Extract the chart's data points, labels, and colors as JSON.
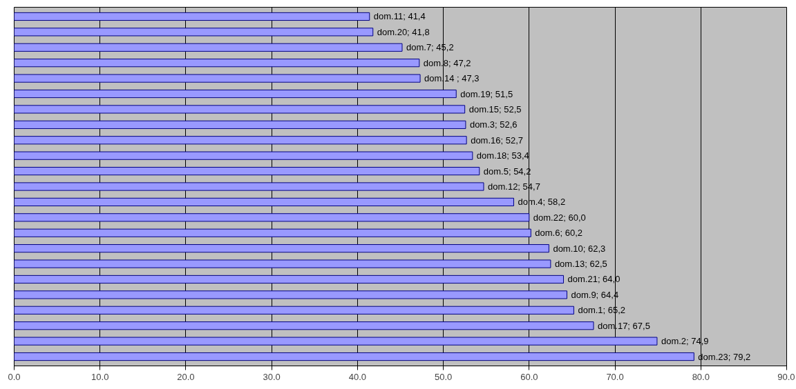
{
  "chart_data": {
    "type": "bar",
    "orientation": "horizontal",
    "categories": [
      null,
      null,
      null,
      null,
      null,
      null,
      null,
      null,
      null,
      null,
      null,
      null,
      null,
      null,
      null,
      null,
      null,
      null,
      null,
      null,
      null,
      null,
      null
    ],
    "values": [
      41.4,
      41.8,
      45.2,
      47.2,
      47.3,
      51.5,
      52.5,
      52.6,
      52.7,
      53.4,
      54.2,
      54.7,
      58.2,
      60.0,
      60.2,
      62.3,
      62.5,
      64.0,
      64.4,
      65.2,
      67.5,
      74.9,
      79.2
    ],
    "value_labels": [
      "dom.11; 41,4",
      "dom.20; 41,8",
      "dom.7; 45,2",
      "dom.8; 47,2",
      "dom.14 ; 47,3",
      "dom.19; 51,5",
      "dom.15; 52,5",
      "dom.3; 52,6",
      "dom.16; 52,7",
      "dom.18; 53,4",
      "dom.5; 54,2",
      "dom.12; 54,7",
      "dom.4; 58,2",
      "dom.22; 60,0",
      "dom.6; 60,2",
      "dom.10; 62,3",
      "dom.13; 62,5",
      "dom.21; 64,0",
      "dom.9; 64,4",
      "dom.1; 65,2",
      "dom.17; 67,5",
      "dom.2; 74,9",
      "dom.23; 79,2"
    ],
    "color": "#9999ff",
    "xlim": [
      0,
      90
    ],
    "xticks": [
      {
        "value": 0,
        "label": "0.0"
      },
      {
        "value": 10,
        "label": "10.0"
      },
      {
        "value": 20,
        "label": "20.0"
      },
      {
        "value": 30,
        "label": "30.0"
      },
      {
        "value": 40,
        "label": "40.0"
      },
      {
        "value": 50,
        "label": "50.0"
      },
      {
        "value": 60,
        "label": "60.0"
      },
      {
        "value": 70,
        "label": "70.0"
      },
      {
        "value": 80,
        "label": "80.0"
      },
      {
        "value": 90,
        "label": "90.0"
      }
    ],
    "grid": "x",
    "tick_labels": "x"
  }
}
